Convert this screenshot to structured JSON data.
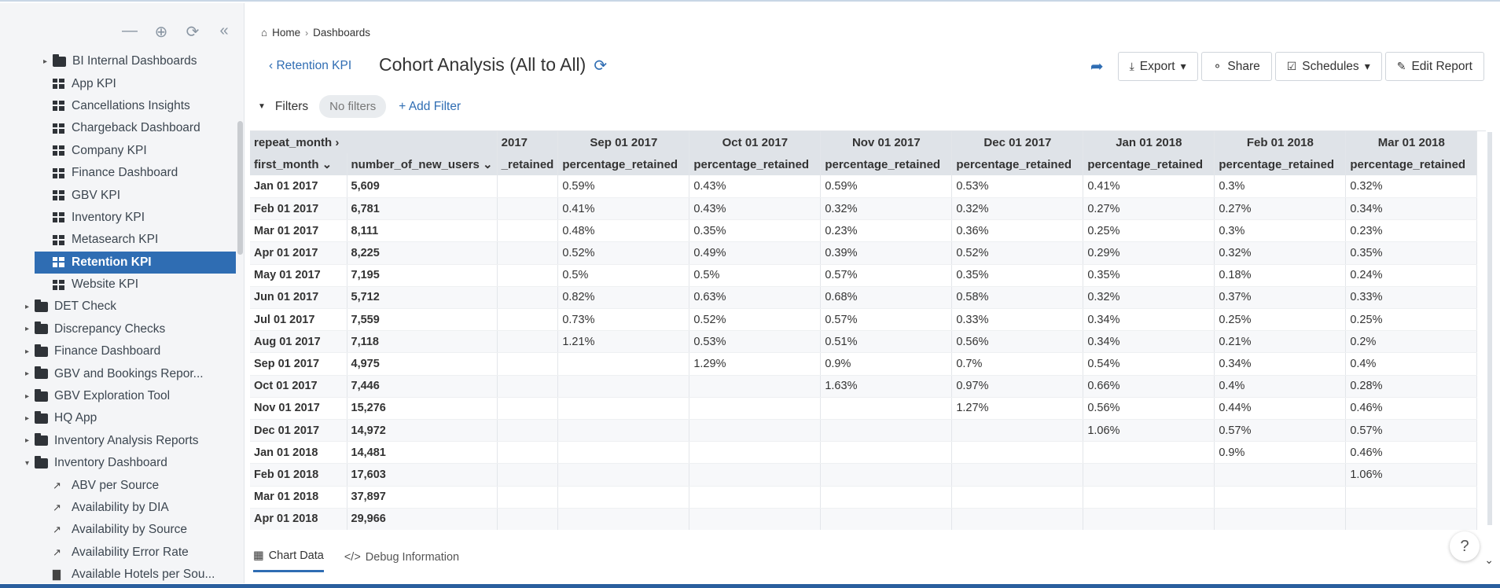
{
  "sidebar": {
    "top_icons": [
      "minimize-icon",
      "target-icon",
      "refresh-icon",
      "collapse-icon"
    ],
    "items": [
      {
        "label": "BI Internal Dashboards",
        "type": "folder",
        "level": 1,
        "caret": "right"
      },
      {
        "label": "App KPI",
        "type": "dashboard",
        "level": 2
      },
      {
        "label": "Cancellations Insights",
        "type": "dashboard",
        "level": 2
      },
      {
        "label": "Chargeback Dashboard",
        "type": "dashboard",
        "level": 2
      },
      {
        "label": "Company KPI",
        "type": "dashboard",
        "level": 2
      },
      {
        "label": "Finance Dashboard",
        "type": "dashboard",
        "level": 2
      },
      {
        "label": "GBV KPI",
        "type": "dashboard",
        "level": 2
      },
      {
        "label": "Inventory KPI",
        "type": "dashboard",
        "level": 2
      },
      {
        "label": "Metasearch KPI",
        "type": "dashboard",
        "level": 2
      },
      {
        "label": "Retention KPI",
        "type": "dashboard",
        "level": 2,
        "active": true
      },
      {
        "label": "Website KPI",
        "type": "dashboard",
        "level": 2
      },
      {
        "label": "DET Check",
        "type": "folder",
        "level": 0,
        "caret": "right"
      },
      {
        "label": "Discrepancy Checks",
        "type": "folder",
        "level": 0,
        "caret": "right"
      },
      {
        "label": "Finance Dashboard",
        "type": "folder",
        "level": 0,
        "caret": "right"
      },
      {
        "label": "GBV and Bookings Repor...",
        "type": "folder",
        "level": 0,
        "caret": "right"
      },
      {
        "label": "GBV Exploration Tool",
        "type": "folder",
        "level": 0,
        "caret": "right"
      },
      {
        "label": "HQ App",
        "type": "folder",
        "level": 0,
        "caret": "right"
      },
      {
        "label": "Inventory Analysis Reports",
        "type": "folder",
        "level": 0,
        "caret": "right"
      },
      {
        "label": "Inventory Dashboard",
        "type": "folder",
        "level": 0,
        "caret": "down"
      },
      {
        "label": "ABV per Source",
        "type": "line",
        "level": 2
      },
      {
        "label": "Availability by DIA",
        "type": "line",
        "level": 2
      },
      {
        "label": "Availability by Source",
        "type": "line",
        "level": 2
      },
      {
        "label": "Availability Error Rate",
        "type": "line",
        "level": 2
      },
      {
        "label": "Available Hotels per Sou...",
        "type": "bar",
        "level": 2
      }
    ]
  },
  "breadcrumb": {
    "home": "Home",
    "dashboards": "Dashboards"
  },
  "header": {
    "back_label": "Retention KPI",
    "title": "Cohort Analysis (All to All)",
    "export": "Export",
    "share": "Share",
    "schedules": "Schedules",
    "edit": "Edit Report"
  },
  "filters": {
    "label": "Filters",
    "none": "No filters",
    "add": "Add Filter"
  },
  "table": {
    "pivot_label": "repeat_month",
    "row_label": "first_month",
    "users_label": "number_of_new_users",
    "partial_month": "2017",
    "partial_metric": "_retained",
    "months": [
      "Sep 01 2017",
      "Oct 01 2017",
      "Nov 01 2017",
      "Dec 01 2017",
      "Jan 01 2018",
      "Feb 01 2018",
      "Mar 01 2018"
    ],
    "metric": "percentage_retained",
    "rows": [
      {
        "m": "Jan 01 2017",
        "n": "5,609",
        "v": [
          "0.59%",
          "0.43%",
          "0.59%",
          "0.53%",
          "0.41%",
          "0.3%",
          "0.32%"
        ]
      },
      {
        "m": "Feb 01 2017",
        "n": "6,781",
        "v": [
          "0.41%",
          "0.43%",
          "0.32%",
          "0.32%",
          "0.27%",
          "0.27%",
          "0.34%"
        ]
      },
      {
        "m": "Mar 01 2017",
        "n": "8,111",
        "v": [
          "0.48%",
          "0.35%",
          "0.23%",
          "0.36%",
          "0.25%",
          "0.3%",
          "0.23%"
        ]
      },
      {
        "m": "Apr 01 2017",
        "n": "8,225",
        "v": [
          "0.52%",
          "0.49%",
          "0.39%",
          "0.52%",
          "0.29%",
          "0.32%",
          "0.35%"
        ]
      },
      {
        "m": "May 01 2017",
        "n": "7,195",
        "v": [
          "0.5%",
          "0.5%",
          "0.57%",
          "0.35%",
          "0.35%",
          "0.18%",
          "0.24%"
        ]
      },
      {
        "m": "Jun 01 2017",
        "n": "5,712",
        "v": [
          "0.82%",
          "0.63%",
          "0.68%",
          "0.58%",
          "0.32%",
          "0.37%",
          "0.33%"
        ]
      },
      {
        "m": "Jul 01 2017",
        "n": "7,559",
        "v": [
          "0.73%",
          "0.52%",
          "0.57%",
          "0.33%",
          "0.34%",
          "0.25%",
          "0.25%"
        ]
      },
      {
        "m": "Aug 01 2017",
        "n": "7,118",
        "v": [
          "1.21%",
          "0.53%",
          "0.51%",
          "0.56%",
          "0.34%",
          "0.21%",
          "0.2%"
        ]
      },
      {
        "m": "Sep 01 2017",
        "n": "4,975",
        "v": [
          "",
          "1.29%",
          "0.9%",
          "0.7%",
          "0.54%",
          "0.34%",
          "0.4%"
        ]
      },
      {
        "m": "Oct 01 2017",
        "n": "7,446",
        "v": [
          "",
          "",
          "1.63%",
          "0.97%",
          "0.66%",
          "0.4%",
          "0.28%"
        ]
      },
      {
        "m": "Nov 01 2017",
        "n": "15,276",
        "v": [
          "",
          "",
          "",
          "1.27%",
          "0.56%",
          "0.44%",
          "0.46%"
        ]
      },
      {
        "m": "Dec 01 2017",
        "n": "14,972",
        "v": [
          "",
          "",
          "",
          "",
          "1.06%",
          "0.57%",
          "0.57%"
        ]
      },
      {
        "m": "Jan 01 2018",
        "n": "14,481",
        "v": [
          "",
          "",
          "",
          "",
          "",
          "0.9%",
          "0.46%"
        ]
      },
      {
        "m": "Feb 01 2018",
        "n": "17,603",
        "v": [
          "",
          "",
          "",
          "",
          "",
          "",
          "1.06%"
        ]
      },
      {
        "m": "Mar 01 2018",
        "n": "37,897",
        "v": [
          "",
          "",
          "",
          "",
          "",
          "",
          ""
        ]
      },
      {
        "m": "Apr 01 2018",
        "n": "29,966",
        "v": [
          "",
          "",
          "",
          "",
          "",
          "",
          ""
        ]
      }
    ]
  },
  "tabs": {
    "chart_data": "Chart Data",
    "debug": "Debug Information"
  },
  "help": "?"
}
